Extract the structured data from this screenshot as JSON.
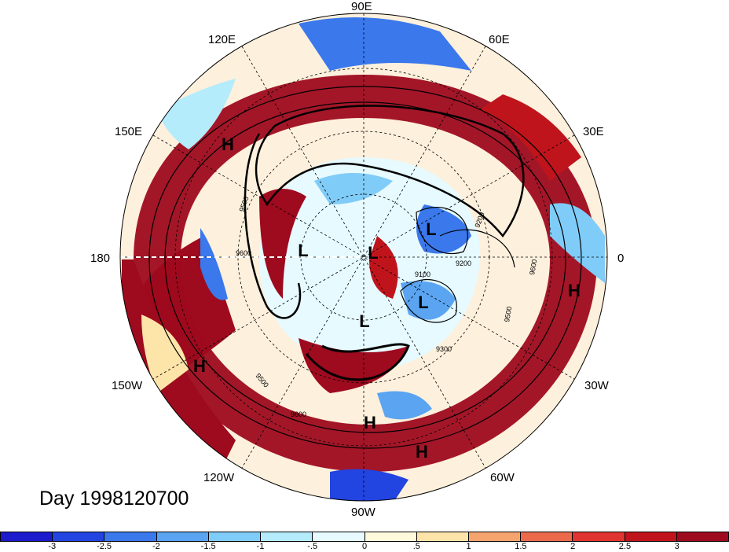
{
  "title": "Day 1998120700",
  "lon_labels": {
    "e90": "90E",
    "e120": "120E",
    "e60": "60E",
    "e150": "150E",
    "e30": "30E",
    "d180": "180",
    "d0": "0",
    "w150": "150W",
    "w30": "30W",
    "w120": "120W",
    "w60": "60W",
    "w90": "90W"
  },
  "pressure_centers": [
    {
      "type": "H",
      "id": "h1"
    },
    {
      "type": "H",
      "id": "h2"
    },
    {
      "type": "H",
      "id": "h3"
    },
    {
      "type": "H",
      "id": "h4"
    },
    {
      "type": "H",
      "id": "h5"
    },
    {
      "type": "L",
      "id": "l1"
    },
    {
      "type": "L",
      "id": "l2"
    },
    {
      "type": "L",
      "id": "l3"
    },
    {
      "type": "L",
      "id": "l4"
    },
    {
      "type": "L",
      "id": "l5"
    }
  ],
  "contour_labels": [
    "9500",
    "9600",
    "9500",
    "9600",
    "9300",
    "9500",
    "9600",
    "9200",
    "9100",
    "9200"
  ],
  "colorbar": {
    "colors": [
      "#1c1ccc",
      "#2244e0",
      "#3a78ec",
      "#5aa4f2",
      "#80ccf8",
      "#b4ecfc",
      "#e6faff",
      "#fffadc",
      "#fde4a8",
      "#f6a46e",
      "#ec6a4c",
      "#e03430",
      "#c0141c",
      "#9e0a1e"
    ],
    "ticks": [
      "-3",
      "-2.5",
      "-2",
      "-1.5",
      "-1",
      "-.5",
      "0",
      ".5",
      "1",
      "1.5",
      "2",
      "2.5",
      "3"
    ]
  }
}
